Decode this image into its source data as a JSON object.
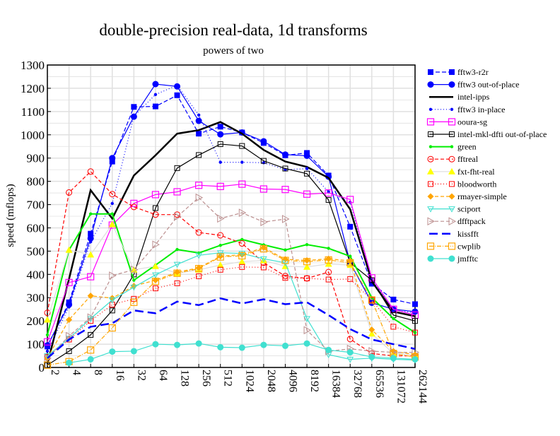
{
  "chart_data": {
    "type": "line",
    "title": "double-precision real-data, 1d transforms",
    "subtitle": "powers of two",
    "xlabel": "",
    "ylabel": "speed (mflops)",
    "ylim": [
      0,
      1300
    ],
    "yticks": [
      0,
      100,
      200,
      300,
      400,
      500,
      600,
      700,
      800,
      900,
      1000,
      1100,
      1200,
      1300
    ],
    "x_scale": "log2",
    "grid": true,
    "legend_position": "right",
    "categories": [
      "2",
      "4",
      "8",
      "16",
      "32",
      "64",
      "128",
      "256",
      "512",
      "1024",
      "2048",
      "4096",
      "8192",
      "16384",
      "32768",
      "65536",
      "131072",
      "262144"
    ],
    "series": [
      {
        "name": "fftw3-r2r",
        "color": "#0000ff",
        "dash": "6,3",
        "marker": "square-filled",
        "values": [
          90,
          280,
          575,
          885,
          1120,
          1122,
          1170,
          1005,
          1035,
          1010,
          965,
          912,
          922,
          825,
          605,
          360,
          292,
          272
        ]
      },
      {
        "name": "fftw3 out-of-place",
        "color": "#0000ff",
        "dash": "",
        "marker": "circle-filled",
        "values": [
          95,
          270,
          555,
          900,
          1078,
          1218,
          1208,
          1060,
          1002,
          1010,
          972,
          915,
          910,
          820,
          450,
          278,
          250,
          240
        ]
      },
      {
        "name": "intel-ipps",
        "color": "#000000",
        "dash": "",
        "marker": "thick",
        "values": [
          15,
          380,
          762,
          640,
          825,
          912,
          1005,
          1020,
          1055,
          1005,
          935,
          885,
          862,
          815,
          680,
          370,
          240,
          220
        ]
      },
      {
        "name": "fftw3 in-place",
        "color": "#0000ff",
        "dash": "1,3",
        "marker": "dot",
        "values": [
          70,
          260,
          540,
          705,
          1080,
          1173,
          1213,
          1085,
          882,
          882,
          880,
          850,
          855,
          755,
          710,
          380,
          245,
          235
        ]
      },
      {
        "name": "ooura-sg",
        "color": "#ff00ff",
        "dash": "",
        "marker": "square-open",
        "values": [
          110,
          365,
          390,
          612,
          705,
          743,
          755,
          783,
          778,
          788,
          767,
          765,
          745,
          750,
          722,
          385,
          250,
          225
        ]
      },
      {
        "name": "intel-mkl-dfti out-of-place",
        "color": "#000000",
        "dash": "",
        "marker": "square-open-small",
        "values": [
          10,
          70,
          140,
          245,
          400,
          685,
          857,
          913,
          960,
          952,
          888,
          855,
          833,
          720,
          450,
          375,
          225,
          200
        ]
      },
      {
        "name": "green",
        "color": "#00ee00",
        "dash": "",
        "marker": "dot",
        "values": [
          140,
          505,
          660,
          660,
          375,
          440,
          507,
          492,
          525,
          550,
          527,
          505,
          528,
          512,
          478,
          300,
          210,
          150
        ]
      },
      {
        "name": "fftreal",
        "color": "#ff0000",
        "dash": "5,3",
        "marker": "circle-open",
        "values": [
          235,
          752,
          842,
          745,
          690,
          657,
          657,
          580,
          568,
          533,
          450,
          393,
          383,
          410,
          122,
          60,
          50,
          50
        ]
      },
      {
        "name": "fxt-fht-real",
        "color": "#ffff00",
        "line": "#dddddd",
        "dash": "",
        "marker": "triangle-up",
        "values": [
          205,
          505,
          485,
          615,
          420,
          435,
          405,
          420,
          440,
          455,
          460,
          435,
          432,
          445,
          440,
          145,
          60,
          55
        ]
      },
      {
        "name": "bloodworth",
        "color": "#ff0000",
        "dash": "1,3",
        "marker": "square-open-small",
        "values": [
          45,
          120,
          200,
          270,
          295,
          340,
          362,
          392,
          420,
          432,
          430,
          385,
          383,
          378,
          380,
          290,
          175,
          150
        ]
      },
      {
        "name": "rmayer-simple",
        "color": "#ffa500",
        "dash": "5,3",
        "marker": "diamond",
        "values": [
          40,
          205,
          308,
          298,
          350,
          375,
          410,
          428,
          478,
          485,
          515,
          465,
          460,
          467,
          458,
          162,
          70,
          55
        ]
      },
      {
        "name": "sciport",
        "color": "#40e0d0",
        "dash": "",
        "marker": "triangle-down",
        "values": [
          50,
          125,
          210,
          290,
          345,
          398,
          443,
          482,
          493,
          490,
          467,
          450,
          210,
          55,
          35,
          40,
          35,
          32
        ]
      },
      {
        "name": "dfftpack",
        "color": "#bc8f8f",
        "dash": "5,3",
        "marker": "triangle-right",
        "values": [
          40,
          135,
          215,
          395,
          420,
          528,
          648,
          730,
          640,
          665,
          625,
          638,
          160,
          70,
          80,
          70,
          65,
          65
        ]
      },
      {
        "name": "kissfft",
        "color": "#0000ff",
        "dash": "12,6",
        "marker": "thick",
        "values": [
          40,
          120,
          175,
          190,
          245,
          233,
          283,
          268,
          297,
          275,
          293,
          272,
          280,
          225,
          165,
          120,
          100,
          80
        ]
      },
      {
        "name": "cwplib",
        "color": "#ffa500",
        "dash": "6,2,1,2",
        "marker": "square-open",
        "values": [
          10,
          25,
          75,
          170,
          280,
          370,
          405,
          425,
          475,
          480,
          510,
          460,
          455,
          462,
          450,
          290,
          60,
          45
        ]
      },
      {
        "name": "jmfftc",
        "color": "#40e0d0",
        "dash": "",
        "marker": "circle-filled",
        "values": [
          null,
          20,
          35,
          68,
          70,
          100,
          97,
          103,
          87,
          85,
          97,
          93,
          103,
          75,
          65,
          45,
          40,
          35
        ]
      }
    ]
  }
}
